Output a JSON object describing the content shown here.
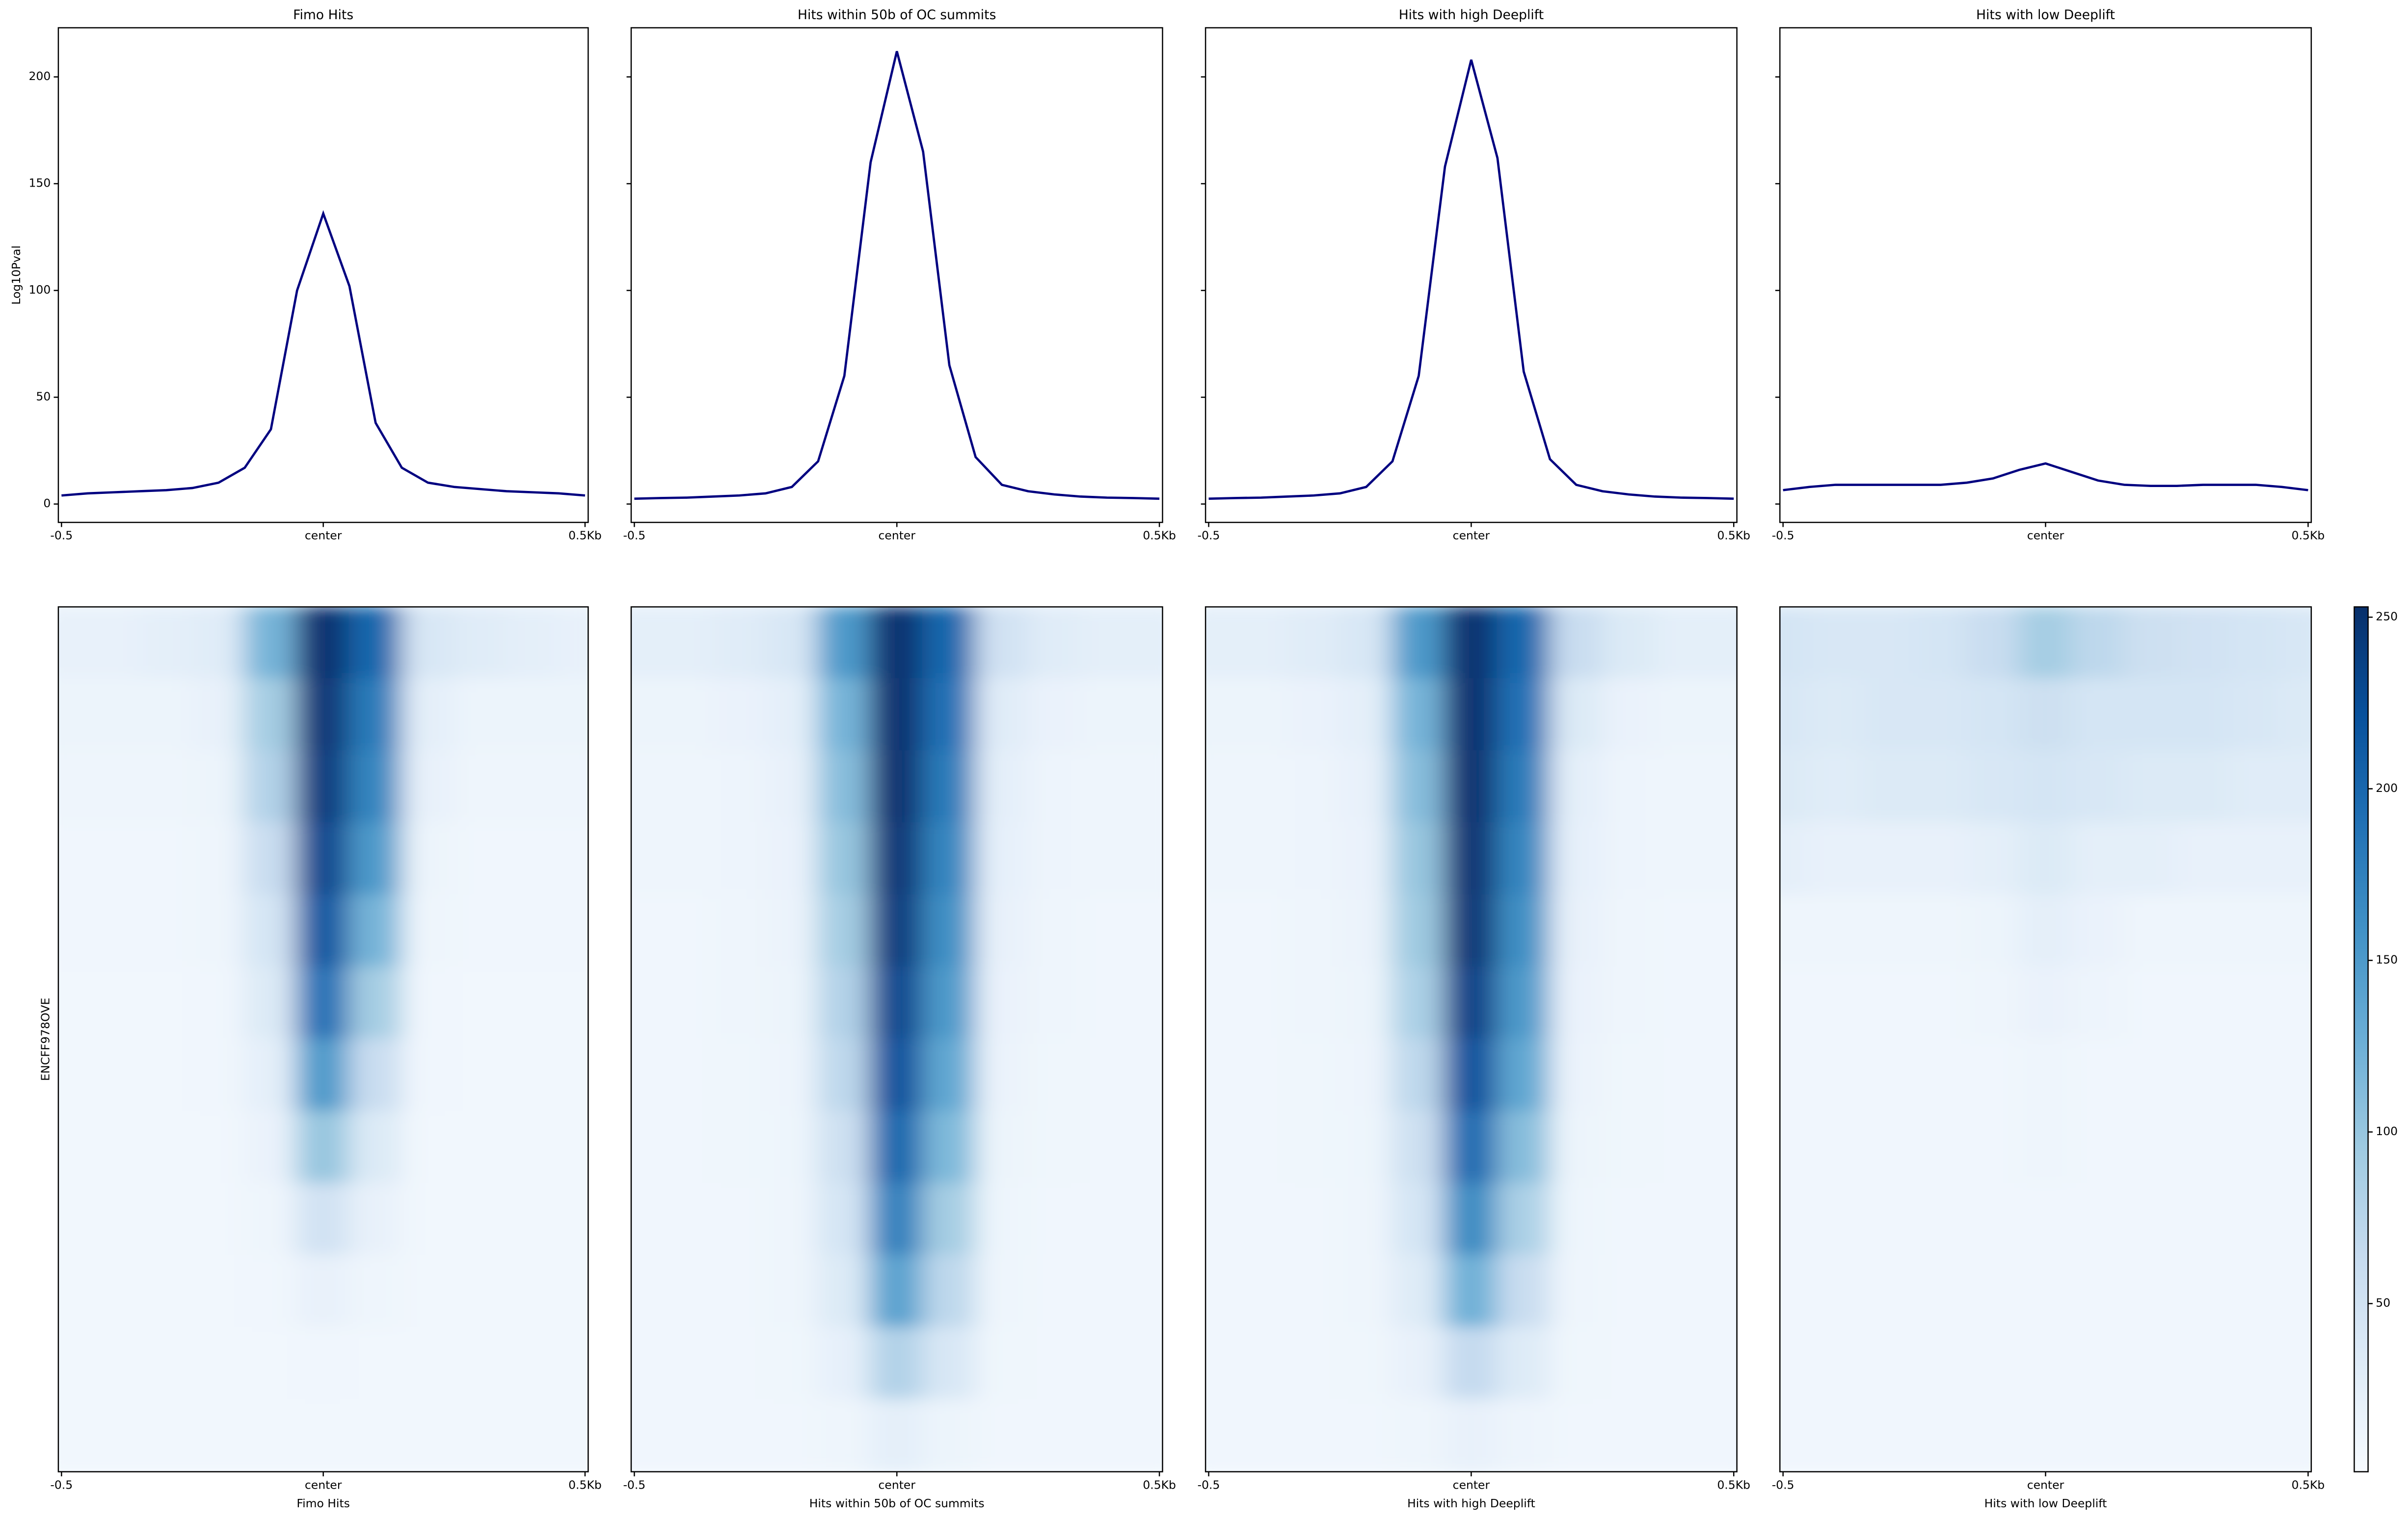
{
  "chart_data": [
    {
      "type": "line",
      "title": "Fimo Hits",
      "ylabel": "Log10Pval",
      "x": [
        -0.5,
        -0.45,
        -0.4,
        -0.35,
        -0.3,
        -0.25,
        -0.2,
        -0.15,
        -0.1,
        -0.05,
        0,
        0.05,
        0.1,
        0.15,
        0.2,
        0.25,
        0.3,
        0.35,
        0.4,
        0.45,
        0.5
      ],
      "values": [
        4,
        5,
        5.5,
        6,
        6.5,
        7.5,
        10,
        17,
        35,
        100,
        136,
        102,
        38,
        17,
        10,
        8,
        7,
        6,
        5.5,
        5,
        4
      ],
      "color": "#000080",
      "xlim": [
        -0.506,
        0.506
      ],
      "xticks": [
        {
          "value": -0.5,
          "label": "-0.5"
        },
        {
          "value": 0,
          "label": "center"
        },
        {
          "value": 0.5,
          "label": "0.5Kb"
        }
      ],
      "ylim": [
        -8.6,
        223
      ],
      "yticks": [
        0,
        50,
        100,
        150,
        200
      ]
    },
    {
      "type": "line",
      "title": "Hits within 50b of OC summits",
      "x": [
        -0.5,
        -0.45,
        -0.4,
        -0.35,
        -0.3,
        -0.25,
        -0.2,
        -0.15,
        -0.1,
        -0.05,
        0,
        0.05,
        0.1,
        0.15,
        0.2,
        0.25,
        0.3,
        0.35,
        0.4,
        0.45,
        0.5
      ],
      "values": [
        2.5,
        2.8,
        3,
        3.5,
        4,
        5,
        8,
        20,
        60,
        160,
        212,
        165,
        65,
        22,
        9,
        6,
        4.5,
        3.5,
        3,
        2.8,
        2.5
      ],
      "color": "#000080",
      "xlim": [
        -0.506,
        0.506
      ],
      "xticks": [
        {
          "value": -0.5,
          "label": "-0.5"
        },
        {
          "value": 0,
          "label": "center"
        },
        {
          "value": 0.5,
          "label": "0.5Kb"
        }
      ],
      "ylim": [
        -8.6,
        223
      ]
    },
    {
      "type": "line",
      "title": "Hits with high Deeplift",
      "x": [
        -0.5,
        -0.45,
        -0.4,
        -0.35,
        -0.3,
        -0.25,
        -0.2,
        -0.15,
        -0.1,
        -0.05,
        0,
        0.05,
        0.1,
        0.15,
        0.2,
        0.25,
        0.3,
        0.35,
        0.4,
        0.45,
        0.5
      ],
      "values": [
        2.5,
        2.8,
        3,
        3.5,
        4,
        5,
        8,
        20,
        60,
        158,
        208,
        162,
        62,
        21,
        9,
        6,
        4.5,
        3.5,
        3,
        2.8,
        2.5
      ],
      "color": "#000080",
      "xlim": [
        -0.506,
        0.506
      ],
      "xticks": [
        {
          "value": -0.5,
          "label": "-0.5"
        },
        {
          "value": 0,
          "label": "center"
        },
        {
          "value": 0.5,
          "label": "0.5Kb"
        }
      ],
      "ylim": [
        -8.6,
        223
      ]
    },
    {
      "type": "line",
      "title": "Hits with low Deeplift",
      "x": [
        -0.5,
        -0.45,
        -0.4,
        -0.35,
        -0.3,
        -0.25,
        -0.2,
        -0.15,
        -0.1,
        -0.05,
        0,
        0.05,
        0.1,
        0.15,
        0.2,
        0.25,
        0.3,
        0.35,
        0.4,
        0.45,
        0.5
      ],
      "values": [
        6.5,
        8,
        9,
        9,
        9,
        9,
        9,
        10,
        12,
        16,
        19,
        15,
        11,
        9,
        8.5,
        8.5,
        9,
        9,
        9,
        8,
        6.5
      ],
      "color": "#000080",
      "xlim": [
        -0.506,
        0.506
      ],
      "xticks": [
        {
          "value": -0.5,
          "label": "-0.5"
        },
        {
          "value": 0,
          "label": "center"
        },
        {
          "value": 0.5,
          "label": "0.5Kb"
        }
      ],
      "ylim": [
        -8.6,
        223
      ]
    },
    {
      "type": "heatmap",
      "xlabel": "Fimo Hits",
      "ylabel": "ENCFF978OVE",
      "x": [
        -0.5,
        -0.4,
        -0.3,
        -0.2,
        -0.1,
        0,
        0.1,
        0.2,
        0.3,
        0.4,
        0.5
      ],
      "xlim": [
        -0.506,
        0.506
      ],
      "xticks": [
        {
          "value": -0.5,
          "label": "-0.5"
        },
        {
          "value": 0,
          "label": "center"
        },
        {
          "value": 0.5,
          "label": "0.5Kb"
        }
      ],
      "z": [
        [
          20,
          20,
          25,
          30,
          120,
          250,
          200,
          40,
          30,
          25,
          20
        ],
        [
          15,
          15,
          15,
          20,
          90,
          245,
          180,
          25,
          15,
          15,
          15
        ],
        [
          12,
          12,
          12,
          15,
          80,
          240,
          170,
          20,
          12,
          12,
          12
        ],
        [
          10,
          10,
          10,
          12,
          60,
          230,
          150,
          15,
          10,
          10,
          10
        ],
        [
          10,
          10,
          10,
          12,
          45,
          215,
          120,
          12,
          10,
          10,
          10
        ],
        [
          8,
          8,
          8,
          10,
          35,
          190,
          90,
          10,
          8,
          8,
          8
        ],
        [
          8,
          8,
          8,
          10,
          25,
          150,
          60,
          10,
          8,
          8,
          8
        ],
        [
          8,
          8,
          8,
          8,
          18,
          100,
          35,
          8,
          8,
          8,
          8
        ],
        [
          8,
          8,
          8,
          8,
          12,
          50,
          20,
          8,
          8,
          8,
          8
        ],
        [
          8,
          8,
          8,
          8,
          10,
          20,
          12,
          8,
          8,
          8,
          8
        ],
        [
          8,
          8,
          8,
          8,
          8,
          10,
          8,
          8,
          8,
          8,
          8
        ],
        [
          8,
          8,
          8,
          8,
          8,
          8,
          8,
          8,
          8,
          8,
          8
        ]
      ]
    },
    {
      "type": "heatmap",
      "xlabel": "Hits within 50b of OC summits",
      "x": [
        -0.5,
        -0.4,
        -0.3,
        -0.2,
        -0.1,
        0,
        0.1,
        0.2,
        0.3,
        0.4,
        0.5
      ],
      "xlim": [
        -0.506,
        0.506
      ],
      "xticks": [
        {
          "value": -0.5,
          "label": "-0.5"
        },
        {
          "value": 0,
          "label": "center"
        },
        {
          "value": 0.5,
          "label": "0.5Kb"
        }
      ],
      "z": [
        [
          25,
          25,
          30,
          40,
          150,
          250,
          200,
          50,
          30,
          25,
          25
        ],
        [
          15,
          15,
          18,
          25,
          120,
          250,
          190,
          30,
          18,
          15,
          15
        ],
        [
          12,
          12,
          14,
          20,
          110,
          250,
          180,
          25,
          14,
          12,
          12
        ],
        [
          12,
          12,
          14,
          18,
          100,
          245,
          170,
          22,
          14,
          12,
          12
        ],
        [
          10,
          10,
          12,
          16,
          90,
          240,
          160,
          20,
          12,
          10,
          10
        ],
        [
          10,
          10,
          12,
          15,
          80,
          230,
          150,
          18,
          12,
          10,
          10
        ],
        [
          10,
          10,
          11,
          14,
          70,
          220,
          135,
          16,
          11,
          10,
          10
        ],
        [
          10,
          10,
          11,
          13,
          55,
          200,
          115,
          15,
          11,
          10,
          10
        ],
        [
          10,
          10,
          10,
          12,
          45,
          175,
          90,
          13,
          10,
          10,
          10
        ],
        [
          10,
          10,
          10,
          12,
          35,
          140,
          70,
          12,
          10,
          10,
          10
        ],
        [
          10,
          10,
          10,
          11,
          22,
          80,
          40,
          11,
          10,
          10,
          10
        ],
        [
          10,
          10,
          10,
          10,
          12,
          25,
          15,
          10,
          10,
          10,
          10
        ]
      ]
    },
    {
      "type": "heatmap",
      "xlabel": "Hits with high Deeplift",
      "x": [
        -0.5,
        -0.4,
        -0.3,
        -0.2,
        -0.1,
        0,
        0.1,
        0.2,
        0.3,
        0.4,
        0.5
      ],
      "xlim": [
        -0.506,
        0.506
      ],
      "xticks": [
        {
          "value": -0.5,
          "label": "-0.5"
        },
        {
          "value": 0,
          "label": "center"
        },
        {
          "value": 0.5,
          "label": "0.5Kb"
        }
      ],
      "z": [
        [
          25,
          25,
          30,
          40,
          150,
          250,
          200,
          60,
          35,
          25,
          25
        ],
        [
          15,
          15,
          18,
          25,
          120,
          250,
          190,
          35,
          18,
          15,
          15
        ],
        [
          12,
          12,
          14,
          20,
          110,
          250,
          180,
          25,
          14,
          12,
          12
        ],
        [
          12,
          12,
          14,
          18,
          100,
          248,
          170,
          22,
          14,
          12,
          12
        ],
        [
          10,
          10,
          12,
          16,
          95,
          245,
          160,
          20,
          12,
          10,
          10
        ],
        [
          10,
          10,
          12,
          15,
          85,
          235,
          150,
          18,
          12,
          10,
          10
        ],
        [
          10,
          10,
          11,
          14,
          70,
          220,
          135,
          16,
          11,
          10,
          10
        ],
        [
          10,
          10,
          11,
          13,
          55,
          195,
          110,
          15,
          11,
          10,
          10
        ],
        [
          10,
          10,
          10,
          12,
          45,
          165,
          85,
          13,
          10,
          10,
          10
        ],
        [
          10,
          10,
          10,
          12,
          32,
          125,
          60,
          12,
          10,
          10,
          10
        ],
        [
          10,
          10,
          10,
          11,
          20,
          65,
          32,
          11,
          10,
          10,
          10
        ],
        [
          10,
          10,
          10,
          10,
          12,
          20,
          14,
          10,
          10,
          10,
          10
        ]
      ]
    },
    {
      "type": "heatmap",
      "xlabel": "Hits with low Deeplift",
      "x": [
        -0.5,
        -0.4,
        -0.3,
        -0.2,
        -0.1,
        0,
        0.1,
        0.2,
        0.3,
        0.4,
        0.5
      ],
      "xlim": [
        -0.506,
        0.506
      ],
      "xticks": [
        {
          "value": -0.5,
          "label": "-0.5"
        },
        {
          "value": 0,
          "label": "center"
        },
        {
          "value": 0.5,
          "label": "0.5Kb"
        }
      ],
      "z": [
        [
          45,
          40,
          40,
          45,
          60,
          90,
          70,
          55,
          50,
          45,
          40
        ],
        [
          40,
          35,
          40,
          40,
          45,
          55,
          45,
          45,
          45,
          40,
          35
        ],
        [
          35,
          30,
          35,
          35,
          40,
          45,
          40,
          35,
          35,
          30,
          30
        ],
        [
          25,
          20,
          20,
          20,
          25,
          35,
          25,
          25,
          20,
          20,
          20
        ],
        [
          12,
          12,
          12,
          12,
          15,
          25,
          18,
          12,
          12,
          12,
          12
        ],
        [
          10,
          10,
          10,
          10,
          12,
          18,
          14,
          10,
          10,
          10,
          10
        ],
        [
          10,
          10,
          10,
          10,
          10,
          12,
          10,
          10,
          10,
          10,
          10
        ],
        [
          10,
          10,
          10,
          10,
          10,
          12,
          10,
          10,
          10,
          10,
          10
        ],
        [
          10,
          10,
          10,
          10,
          10,
          10,
          10,
          10,
          10,
          10,
          10
        ],
        [
          10,
          10,
          10,
          10,
          10,
          10,
          10,
          10,
          10,
          10,
          10
        ],
        [
          10,
          10,
          10,
          10,
          10,
          10,
          10,
          10,
          10,
          10,
          10
        ],
        [
          10,
          10,
          10,
          10,
          10,
          10,
          10,
          10,
          10,
          10,
          10
        ]
      ]
    },
    {
      "type": "colorbar",
      "clim": [
        1,
        253
      ],
      "ticks": [
        50,
        100,
        150,
        200,
        250
      ],
      "colormap": [
        "#f7fbff",
        "#deebf7",
        "#c6dbef",
        "#9ecae1",
        "#6baed6",
        "#4292c6",
        "#2171b5",
        "#08519c",
        "#08306b"
      ]
    }
  ]
}
